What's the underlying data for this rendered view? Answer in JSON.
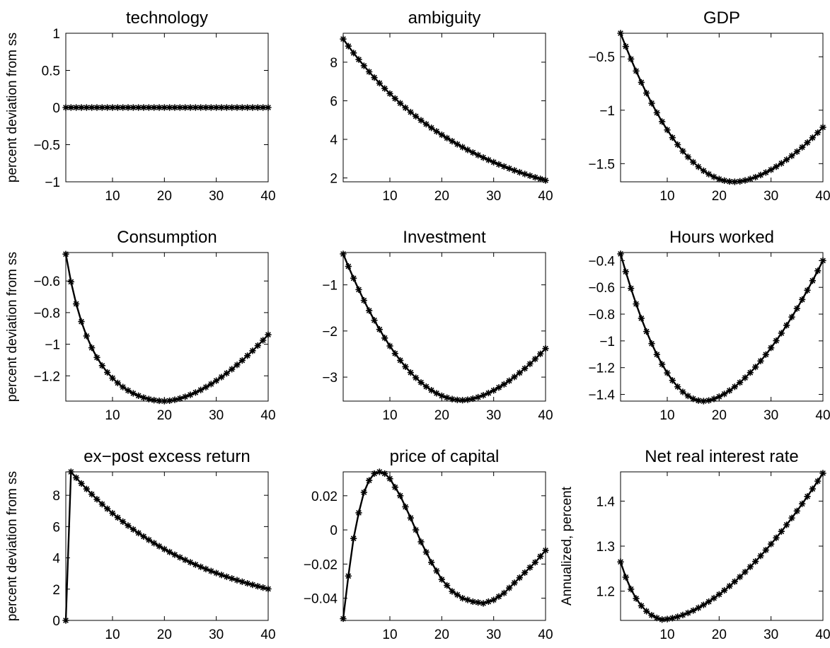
{
  "figure": {
    "panels": [
      {
        "title": "technology",
        "ylabel": "percent deviation from ss",
        "yticks": [
          "1",
          "0.5",
          "0",
          "−0.5",
          "−1"
        ],
        "xticks": [
          "10",
          "20",
          "30",
          "40"
        ]
      },
      {
        "title": "ambiguity",
        "ylabel": "",
        "yticks": [
          "8",
          "6",
          "4",
          "2"
        ],
        "xticks": [
          "10",
          "20",
          "30",
          "40"
        ]
      },
      {
        "title": "GDP",
        "ylabel": "",
        "yticks": [
          "−0.5",
          "−1",
          "−1.5"
        ],
        "xticks": [
          "10",
          "20",
          "30",
          "40"
        ]
      },
      {
        "title": "Consumption",
        "ylabel": "percent deviation from ss",
        "yticks": [
          "−0.6",
          "−0.8",
          "−1",
          "−1.2"
        ],
        "xticks": [
          "10",
          "20",
          "30",
          "40"
        ]
      },
      {
        "title": "Investment",
        "ylabel": "",
        "yticks": [
          "−1",
          "−2",
          "−3"
        ],
        "xticks": [
          "10",
          "20",
          "30",
          "40"
        ]
      },
      {
        "title": "Hours worked",
        "ylabel": "",
        "yticks": [
          "−0.4",
          "−0.6",
          "−0.8",
          "−1",
          "−1.2",
          "−1.4"
        ],
        "xticks": [
          "10",
          "20",
          "30",
          "40"
        ]
      },
      {
        "title": "ex−post excess return",
        "ylabel": "percent deviation from ss",
        "yticks": [
          "8",
          "6",
          "4",
          "2",
          "0"
        ],
        "xticks": [
          "10",
          "20",
          "30",
          "40"
        ]
      },
      {
        "title": "price of capital",
        "ylabel": "",
        "yticks": [
          "0.02",
          "0",
          "−0.02",
          "−0.04"
        ],
        "xticks": [
          "10",
          "20",
          "30",
          "40"
        ]
      },
      {
        "title": "Net real interest rate",
        "ylabel": "Annualized, percent",
        "yticks": [
          "1.4",
          "1.3",
          "1.2"
        ],
        "xticks": [
          "10",
          "20",
          "30",
          "40"
        ]
      }
    ]
  },
  "chart_data": [
    {
      "type": "line",
      "title": "technology",
      "ylabel": "percent deviation from ss",
      "xlim": [
        1,
        40
      ],
      "ylim": [
        -1,
        1
      ],
      "yticks": [
        1,
        0.5,
        0,
        -0.5,
        -1
      ],
      "xticks": [
        10,
        20,
        30,
        40
      ],
      "marker": "asterisk",
      "grid": false,
      "curve": {
        "kind": "constant",
        "value": 0
      }
    },
    {
      "type": "line",
      "title": "ambiguity",
      "ylabel": "",
      "xlim": [
        1,
        40
      ],
      "ylim": [
        1.8,
        9.5
      ],
      "yticks": [
        8,
        6,
        4,
        2
      ],
      "xticks": [
        10,
        20,
        30,
        40
      ],
      "marker": "asterisk",
      "grid": false,
      "curve": {
        "kind": "exp_decay",
        "start": 9.2,
        "rho": 0.96
      }
    },
    {
      "type": "line",
      "title": "GDP",
      "ylabel": "",
      "xlim": [
        1,
        40
      ],
      "ylim": [
        -1.67,
        -0.28
      ],
      "yticks": [
        -0.5,
        -1,
        -1.5
      ],
      "xticks": [
        10,
        20,
        30,
        40
      ],
      "marker": "asterisk",
      "grid": false,
      "curve": {
        "kind": "hump",
        "start": -0.28,
        "min": -1.67,
        "argmin": 23,
        "end": -1.16,
        "k_left": 0.07,
        "k_right": 0.07
      }
    },
    {
      "type": "line",
      "title": "Consumption",
      "ylabel": "percent deviation from ss",
      "xlim": [
        1,
        40
      ],
      "ylim": [
        -1.36,
        -0.42
      ],
      "yticks": [
        -0.6,
        -0.8,
        -1,
        -1.2
      ],
      "xticks": [
        10,
        20,
        30,
        40
      ],
      "marker": "asterisk",
      "grid": false,
      "curve": {
        "kind": "hump",
        "start": -0.43,
        "min": -1.36,
        "argmin": 20,
        "end": -0.94,
        "k_left": 0.28,
        "k_right": 0.09
      }
    },
    {
      "type": "line",
      "title": "Investment",
      "ylabel": "",
      "xlim": [
        1,
        40
      ],
      "ylim": [
        -3.52,
        -0.3
      ],
      "yticks": [
        -1,
        -2,
        -3
      ],
      "xticks": [
        10,
        20,
        30,
        40
      ],
      "marker": "asterisk",
      "grid": false,
      "curve": {
        "kind": "hump",
        "start": -0.33,
        "min": -3.5,
        "argmin": 24,
        "end": -2.38,
        "k_left": 0.07,
        "k_right": 0.08
      }
    },
    {
      "type": "line",
      "title": "Hours worked",
      "ylabel": "",
      "xlim": [
        1,
        40
      ],
      "ylim": [
        -1.45,
        -0.34
      ],
      "yticks": [
        -0.4,
        -0.6,
        -0.8,
        -1,
        -1.2,
        -1.4
      ],
      "xticks": [
        10,
        20,
        30,
        40
      ],
      "marker": "asterisk",
      "grid": false,
      "curve": {
        "kind": "hump",
        "start": -0.35,
        "min": -1.45,
        "argmin": 17,
        "end": -0.4,
        "k_left": 0.17,
        "k_right": 0.04
      }
    },
    {
      "type": "line",
      "title": "ex−post excess return",
      "ylabel": "percent deviation from ss",
      "xlim": [
        1,
        40
      ],
      "ylim": [
        0,
        9.5
      ],
      "yticks": [
        8,
        6,
        4,
        2,
        0
      ],
      "xticks": [
        10,
        20,
        30,
        40
      ],
      "marker": "asterisk",
      "grid": false,
      "curve": {
        "kind": "jump_decay",
        "first": 0,
        "start": 9.5,
        "rho": 0.96
      }
    },
    {
      "type": "line",
      "title": "price of capital",
      "ylabel": "",
      "xlim": [
        1,
        40
      ],
      "ylim": [
        -0.053,
        0.034
      ],
      "yticks": [
        0.02,
        0,
        -0.02,
        -0.04
      ],
      "xticks": [
        10,
        20,
        30,
        40
      ],
      "marker": "asterisk",
      "grid": false,
      "curve": {
        "kind": "wave",
        "points": [
          [
            1,
            -0.052
          ],
          [
            2,
            -0.027
          ],
          [
            3,
            -0.005
          ],
          [
            4,
            0.01
          ],
          [
            5,
            0.022
          ],
          [
            6,
            0.029
          ],
          [
            7,
            0.033
          ],
          [
            8,
            0.034
          ],
          [
            9,
            0.033
          ],
          [
            10,
            0.03
          ],
          [
            12,
            0.02
          ],
          [
            14,
            0.007
          ],
          [
            16,
            -0.007
          ],
          [
            18,
            -0.019
          ],
          [
            20,
            -0.029
          ],
          [
            22,
            -0.036
          ],
          [
            24,
            -0.04
          ],
          [
            26,
            -0.042
          ],
          [
            28,
            -0.043
          ],
          [
            30,
            -0.041
          ],
          [
            32,
            -0.037
          ],
          [
            34,
            -0.031
          ],
          [
            36,
            -0.025
          ],
          [
            38,
            -0.019
          ],
          [
            40,
            -0.012
          ]
        ]
      }
    },
    {
      "type": "line",
      "title": "Net real interest rate",
      "ylabel": "Annualized, percent",
      "xlim": [
        1,
        40
      ],
      "ylim": [
        1.135,
        1.465
      ],
      "yticks": [
        1.4,
        1.3,
        1.2
      ],
      "xticks": [
        10,
        20,
        30,
        40
      ],
      "marker": "asterisk",
      "grid": false,
      "curve": {
        "kind": "hump",
        "start": 1.265,
        "min": 1.137,
        "argmin": 9,
        "end": 1.462,
        "k_left": 0.3,
        "k_right": 0.0
      }
    }
  ]
}
